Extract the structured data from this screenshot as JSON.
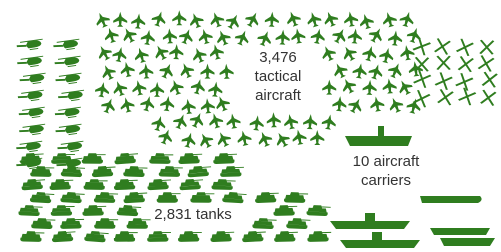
{
  "labels": {
    "aircraft": {
      "number": "3,476",
      "line1": "tactical",
      "line2": "aircraft"
    },
    "carriers": {
      "line1": "10 aircraft",
      "line2": "carriers"
    },
    "tanks": {
      "text": "2,831 tanks"
    }
  }
}
